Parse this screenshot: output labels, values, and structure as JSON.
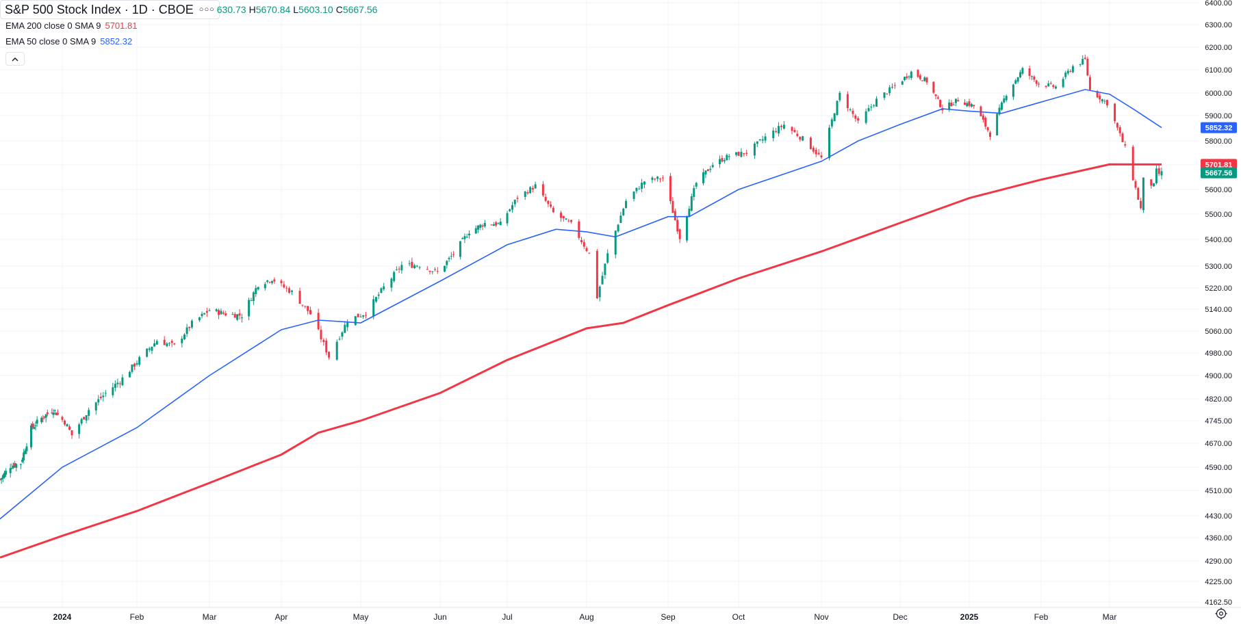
{
  "header": {
    "title": "S&P 500 Stock Index · 1D · CBOE",
    "more_icon": "more-dots-icon",
    "ohlc": [
      {
        "label": "",
        "value": "630.73"
      },
      {
        "label": "H",
        "value": "5670.84"
      },
      {
        "label": "L",
        "value": "5603.10"
      },
      {
        "label": "C",
        "value": "5667.56"
      }
    ]
  },
  "indicators": [
    {
      "label": "EMA 200 close 0 SMA 9",
      "value": "5701.81",
      "color": "#f23645"
    },
    {
      "label": "EMA 50 close 0 SMA 9",
      "value": "5852.32",
      "color": "#2962ff"
    }
  ],
  "collapse_icon": "chevron-up-icon",
  "settings_icon": "gear-icon",
  "colors": {
    "up": "#089981",
    "down": "#f23645",
    "ema200": "#f23645",
    "ema50": "#2962ff",
    "grid": "#f0f3fa",
    "text": "#131722"
  },
  "chart_data": {
    "type": "candlestick",
    "symbol": "S&P 500 Stock Index",
    "interval": "1D",
    "exchange": "CBOE",
    "ylim": [
      4130,
      6400
    ],
    "y_ticks": [
      "6400.00",
      "6300.00",
      "6200.00",
      "6100.00",
      "6000.00",
      "5900.00",
      "5800.00",
      "5700.00",
      "5600.00",
      "5500.00",
      "5400.00",
      "5300.00",
      "5220.00",
      "5140.00",
      "5060.00",
      "4980.00",
      "4900.00",
      "4820.00",
      "4745.00",
      "4670.00",
      "4590.00",
      "4510.00",
      "4430.00",
      "4360.00",
      "4290.00",
      "4225.00",
      "4162.50"
    ],
    "x_ticks": [
      {
        "label": "2024",
        "date": "2024-01-01",
        "bold": true
      },
      {
        "label": "Feb",
        "date": "2024-02-01",
        "bold": false
      },
      {
        "label": "Mar",
        "date": "2024-03-01",
        "bold": false
      },
      {
        "label": "Apr",
        "date": "2024-04-01",
        "bold": false
      },
      {
        "label": "May",
        "date": "2024-05-01",
        "bold": false
      },
      {
        "label": "Jun",
        "date": "2024-06-01",
        "bold": false
      },
      {
        "label": "Jul",
        "date": "2024-07-01",
        "bold": false
      },
      {
        "label": "Aug",
        "date": "2024-08-01",
        "bold": false
      },
      {
        "label": "Sep",
        "date": "2024-09-01",
        "bold": false
      },
      {
        "label": "Oct",
        "date": "2024-10-01",
        "bold": false
      },
      {
        "label": "Nov",
        "date": "2024-11-01",
        "bold": false
      },
      {
        "label": "Dec",
        "date": "2024-12-01",
        "bold": false
      },
      {
        "label": "2025",
        "date": "2025-01-01",
        "bold": true
      },
      {
        "label": "Feb",
        "date": "2025-02-01",
        "bold": false
      },
      {
        "label": "Mar",
        "date": "2025-03-01",
        "bold": false
      }
    ],
    "price_badges": [
      {
        "value": "5852.32",
        "color": "#2962ff"
      },
      {
        "value": "5701.81",
        "color": "#f23645"
      },
      {
        "value": "5667.56",
        "color": "#089981"
      }
    ],
    "close_series": [
      [
        "2023-11-20",
        4547
      ],
      [
        "2023-11-27",
        4594
      ],
      [
        "2023-12-04",
        4604
      ],
      [
        "2023-12-11",
        4719
      ],
      [
        "2023-12-18",
        4754
      ],
      [
        "2023-12-26",
        4783
      ],
      [
        "2024-01-02",
        4742
      ],
      [
        "2024-01-05",
        4697
      ],
      [
        "2024-01-12",
        4783
      ],
      [
        "2024-01-19",
        4839
      ],
      [
        "2024-01-26",
        4890
      ],
      [
        "2024-02-02",
        4958
      ],
      [
        "2024-02-09",
        5026
      ],
      [
        "2024-02-16",
        5005
      ],
      [
        "2024-02-23",
        5088
      ],
      [
        "2024-03-01",
        5137
      ],
      [
        "2024-03-08",
        5123
      ],
      [
        "2024-03-15",
        5117
      ],
      [
        "2024-03-22",
        5234
      ],
      [
        "2024-03-28",
        5254
      ],
      [
        "2024-04-05",
        5204
      ],
      [
        "2024-04-12",
        5123
      ],
      [
        "2024-04-19",
        4967
      ],
      [
        "2024-04-26",
        5099
      ],
      [
        "2024-05-03",
        5127
      ],
      [
        "2024-05-10",
        5222
      ],
      [
        "2024-05-17",
        5303
      ],
      [
        "2024-05-24",
        5304
      ],
      [
        "2024-05-31",
        5277
      ],
      [
        "2024-06-07",
        5346
      ],
      [
        "2024-06-14",
        5431
      ],
      [
        "2024-06-21",
        5464
      ],
      [
        "2024-06-28",
        5460
      ],
      [
        "2024-07-05",
        5567
      ],
      [
        "2024-07-12",
        5615
      ],
      [
        "2024-07-19",
        5505
      ],
      [
        "2024-07-26",
        5459
      ],
      [
        "2024-08-02",
        5346
      ],
      [
        "2024-08-05",
        5186
      ],
      [
        "2024-08-09",
        5344
      ],
      [
        "2024-08-16",
        5554
      ],
      [
        "2024-08-23",
        5634
      ],
      [
        "2024-08-30",
        5648
      ],
      [
        "2024-09-06",
        5408
      ],
      [
        "2024-09-13",
        5626
      ],
      [
        "2024-09-20",
        5702
      ],
      [
        "2024-09-27",
        5738
      ],
      [
        "2024-10-04",
        5751
      ],
      [
        "2024-10-11",
        5815
      ],
      [
        "2024-10-18",
        5864
      ],
      [
        "2024-10-25",
        5808
      ],
      [
        "2024-11-01",
        5728
      ],
      [
        "2024-11-08",
        5995
      ],
      [
        "2024-11-15",
        5870
      ],
      [
        "2024-11-22",
        5969
      ],
      [
        "2024-11-29",
        6032
      ],
      [
        "2024-12-06",
        6090
      ],
      [
        "2024-12-13",
        6051
      ],
      [
        "2024-12-20",
        5930
      ],
      [
        "2024-12-27",
        5970
      ],
      [
        "2025-01-03",
        5942
      ],
      [
        "2025-01-10",
        5827
      ],
      [
        "2025-01-17",
        5997
      ],
      [
        "2025-01-24",
        6101
      ],
      [
        "2025-01-31",
        6040
      ],
      [
        "2025-02-07",
        6026
      ],
      [
        "2025-02-14",
        6115
      ],
      [
        "2025-02-19",
        6144
      ],
      [
        "2025-02-21",
        6013
      ],
      [
        "2025-02-28",
        5955
      ],
      [
        "2025-03-07",
        5770
      ],
      [
        "2025-03-13",
        5521
      ],
      [
        "2025-03-14",
        5639
      ],
      [
        "2025-03-18",
        5615
      ],
      [
        "2025-03-19",
        5675
      ],
      [
        "2025-03-20",
        5663
      ],
      [
        "2025-03-21",
        5667
      ]
    ],
    "series": [
      {
        "name": "EMA 200 close 0 SMA 9",
        "color": "#f23645",
        "points": [
          [
            "2023-11-20",
            4300
          ],
          [
            "2024-01-01",
            4366
          ],
          [
            "2024-02-01",
            4445
          ],
          [
            "2024-03-01",
            4536
          ],
          [
            "2024-04-01",
            4632
          ],
          [
            "2024-04-15",
            4705
          ],
          [
            "2024-05-01",
            4745
          ],
          [
            "2024-06-01",
            4840
          ],
          [
            "2024-07-01",
            4955
          ],
          [
            "2024-08-01",
            5070
          ],
          [
            "2024-08-15",
            5090
          ],
          [
            "2024-09-01",
            5155
          ],
          [
            "2024-10-01",
            5255
          ],
          [
            "2024-11-01",
            5355
          ],
          [
            "2024-12-01",
            5465
          ],
          [
            "2025-01-01",
            5565
          ],
          [
            "2025-02-01",
            5640
          ],
          [
            "2025-03-01",
            5702
          ],
          [
            "2025-03-21",
            5701.81
          ]
        ]
      },
      {
        "name": "EMA 50 close 0 SMA 9",
        "color": "#2962ff",
        "points": [
          [
            "2023-11-20",
            4420
          ],
          [
            "2024-01-01",
            4590
          ],
          [
            "2024-02-01",
            4722
          ],
          [
            "2024-03-01",
            4900
          ],
          [
            "2024-04-01",
            5065
          ],
          [
            "2024-04-15",
            5100
          ],
          [
            "2024-05-01",
            5090
          ],
          [
            "2024-06-01",
            5245
          ],
          [
            "2024-07-01",
            5380
          ],
          [
            "2024-07-20",
            5440
          ],
          [
            "2024-08-01",
            5430
          ],
          [
            "2024-08-12",
            5410
          ],
          [
            "2024-09-01",
            5490
          ],
          [
            "2024-09-10",
            5490
          ],
          [
            "2024-10-01",
            5600
          ],
          [
            "2024-11-01",
            5715
          ],
          [
            "2024-11-15",
            5800
          ],
          [
            "2024-12-01",
            5865
          ],
          [
            "2024-12-20",
            5930
          ],
          [
            "2025-01-01",
            5920
          ],
          [
            "2025-01-15",
            5910
          ],
          [
            "2025-02-01",
            5960
          ],
          [
            "2025-02-19",
            6015
          ],
          [
            "2025-03-01",
            5995
          ],
          [
            "2025-03-10",
            5930
          ],
          [
            "2025-03-21",
            5852.32
          ]
        ]
      }
    ]
  }
}
